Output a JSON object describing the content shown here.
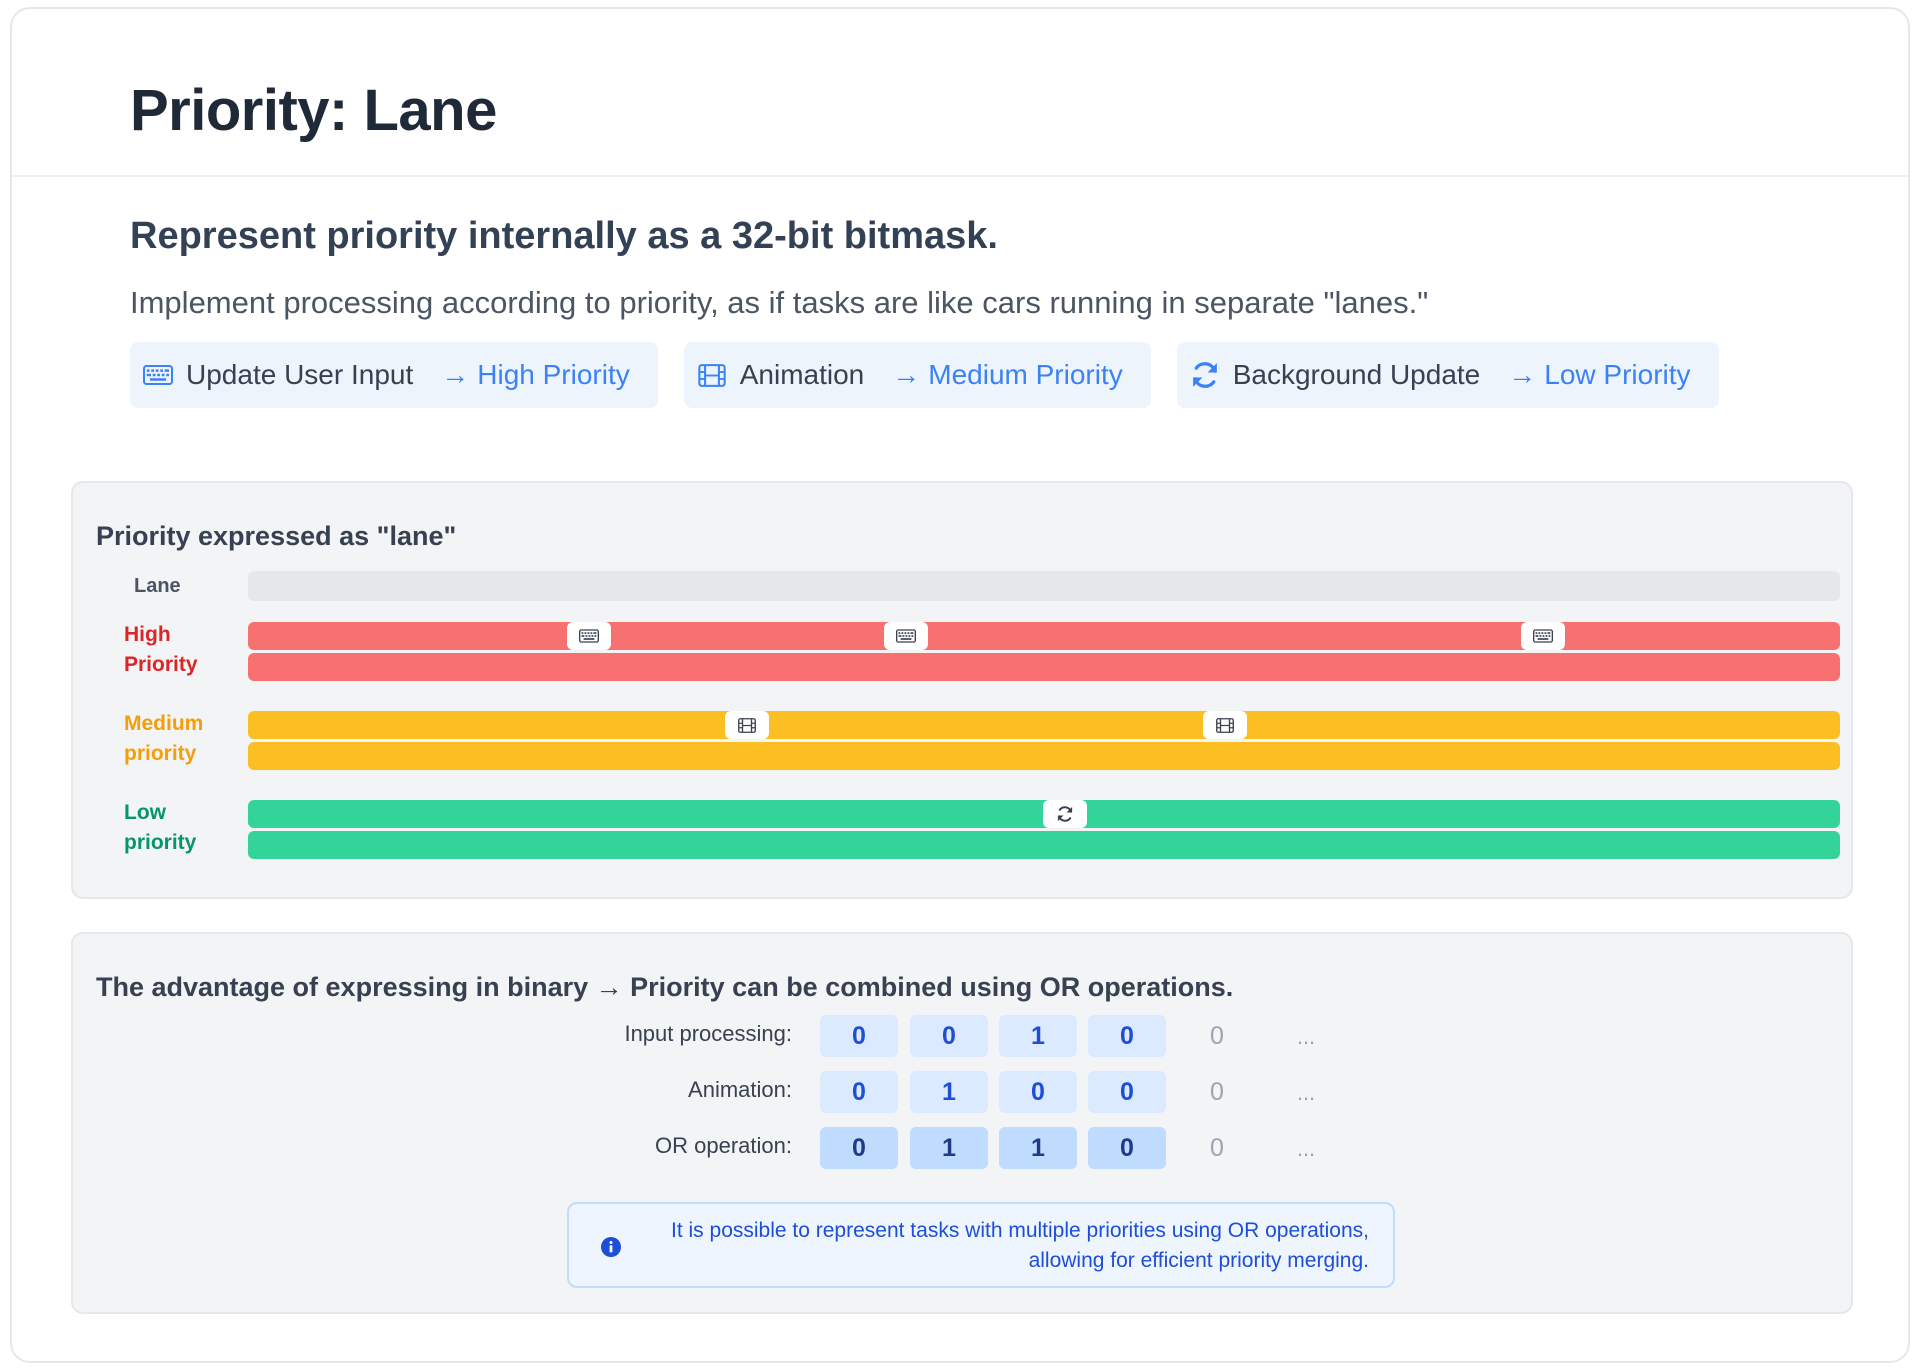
{
  "header": {
    "title": "Priority: Lane"
  },
  "intro": {
    "subtitle": "Represent priority internally as a 32-bit bitmask.",
    "description": "Implement processing according to priority, as if tasks are like cars running in separate \"lanes.\""
  },
  "chips": [
    {
      "icon": "keyboard-icon",
      "label": "Update User Input",
      "arrow": "→",
      "priority": "High Priority"
    },
    {
      "icon": "film-icon",
      "label": "Animation",
      "arrow": "→",
      "priority": "Medium Priority"
    },
    {
      "icon": "refresh-icon",
      "label": "Background Update",
      "arrow": "→",
      "priority": "Low Priority"
    }
  ],
  "lanes_panel": {
    "title": "Priority expressed as \"lane\"",
    "header_label": "Lane",
    "lanes": [
      {
        "label_line1": "High",
        "label_line2": "Priority",
        "color": "#f87171",
        "label_color": "#dc2626",
        "marker_icon": "keyboard-icon",
        "marker_count": 3
      },
      {
        "label_line1": "Medium",
        "label_line2": "priority",
        "color": "#fbbf24",
        "label_color": "#f59e0b",
        "marker_icon": "film-icon",
        "marker_count": 2
      },
      {
        "label_line1": "Low",
        "label_line2": "priority",
        "color": "#34d399",
        "label_color": "#059669",
        "marker_icon": "refresh-icon",
        "marker_count": 1
      }
    ]
  },
  "binary_panel": {
    "title": "The advantage of expressing in binary → Priority can be combined using OR operations.",
    "rows": [
      {
        "label": "Input processing:",
        "bits": [
          "0",
          "0",
          "1",
          "0"
        ],
        "extra": "0",
        "dots": "..."
      },
      {
        "label": "Animation:",
        "bits": [
          "0",
          "1",
          "0",
          "0"
        ],
        "extra": "0",
        "dots": "..."
      },
      {
        "label": "OR operation:",
        "bits": [
          "0",
          "1",
          "1",
          "0"
        ],
        "extra": "0",
        "dots": "..."
      }
    ],
    "note": "It is possible to represent tasks with multiple priorities using OR operations, allowing for efficient priority merging."
  },
  "colors": {
    "accent": "#3b82f6",
    "high": "#f87171",
    "medium": "#fbbf24",
    "low": "#34d399"
  }
}
